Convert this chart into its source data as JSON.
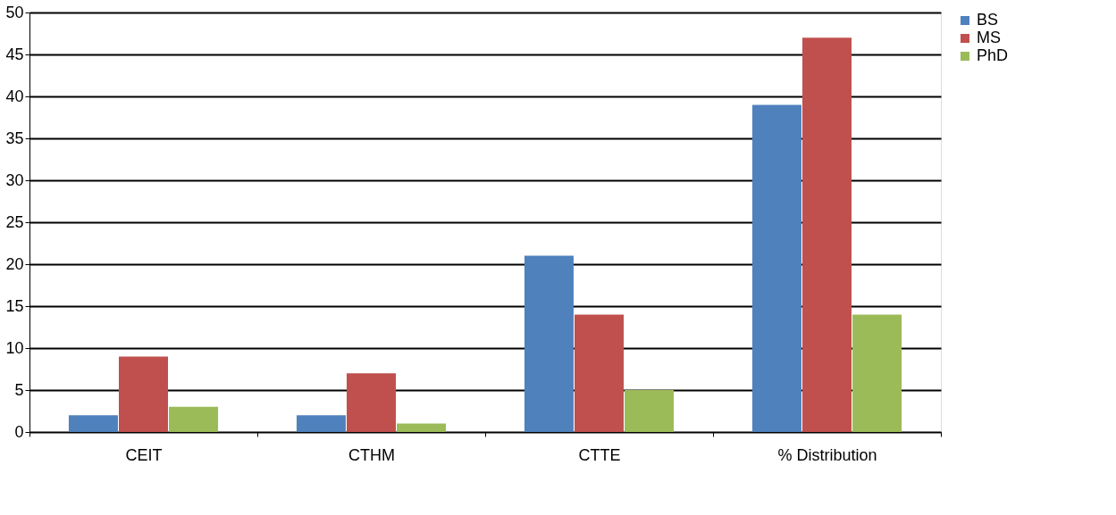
{
  "chart_data": {
    "type": "bar",
    "categories": [
      "CEIT",
      "CTHM",
      "CTTE",
      "% Distribution"
    ],
    "series": [
      {
        "name": "BS",
        "color": "#4f81bd",
        "values": [
          2,
          2,
          21,
          39
        ]
      },
      {
        "name": "MS",
        "color": "#c0504d",
        "values": [
          9,
          7,
          14,
          47
        ]
      },
      {
        "name": "PhD",
        "color": "#9bbb59",
        "values": [
          3,
          1,
          5,
          14
        ]
      }
    ],
    "ylim": [
      0,
      50
    ],
    "yticks": [
      0,
      5,
      10,
      15,
      20,
      25,
      30,
      35,
      40,
      45,
      50
    ],
    "grid": "y",
    "legend": "right"
  }
}
